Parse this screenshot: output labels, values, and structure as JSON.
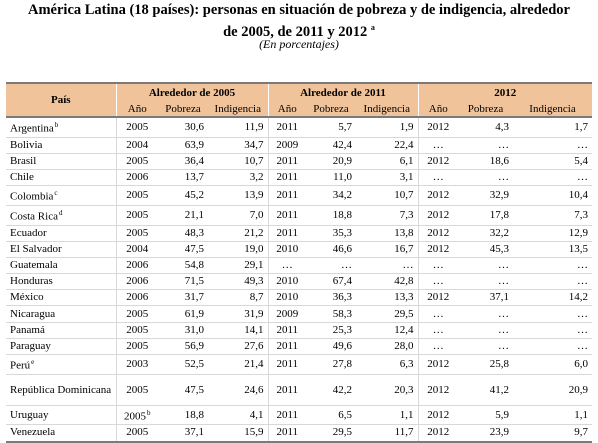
{
  "title_line1": "América Latina (18 países): personas en situación de pobreza y de indigencia, alrededor",
  "title_line2": "de 2005, de 2011 y 2012",
  "title_note": "a",
  "subtitle": "(En porcentajes)",
  "headers": {
    "country": "País",
    "group1": "Alrededor de 2005",
    "group2": "Alrededor de 2011",
    "group3": "2012",
    "year": "Año",
    "poverty": "Pobreza",
    "indigence": "Indigencia"
  },
  "rows": [
    {
      "country": "Argentina",
      "note": "b",
      "y1": "2005",
      "p1": "30,6",
      "i1": "11,9",
      "y2": "2011",
      "p2": "5,7",
      "i2": "1,9",
      "y3": "2012",
      "p3": "4,3",
      "i3": "1,7"
    },
    {
      "country": "Bolivia",
      "note": "",
      "y1": "2004",
      "p1": "63,9",
      "i1": "34,7",
      "y2": "2009",
      "p2": "42,4",
      "i2": "22,4",
      "y3": "…",
      "p3": "…",
      "i3": "…"
    },
    {
      "country": "Brasil",
      "note": "",
      "y1": "2005",
      "p1": "36,4",
      "i1": "10,7",
      "y2": "2011",
      "p2": "20,9",
      "i2": "6,1",
      "y3": "2012",
      "p3": "18,6",
      "i3": "5,4"
    },
    {
      "country": "Chile",
      "note": "",
      "y1": "2006",
      "p1": "13,7",
      "i1": "3,2",
      "y2": "2011",
      "p2": "11,0",
      "i2": "3,1",
      "y3": "…",
      "p3": "…",
      "i3": "…"
    },
    {
      "country": "Colombia",
      "note": "c",
      "y1": "2005",
      "p1": "45,2",
      "i1": "13,9",
      "y2": "2011",
      "p2": "34,2",
      "i2": "10,7",
      "y3": "2012",
      "p3": "32,9",
      "i3": "10,4"
    },
    {
      "country": "Costa Rica",
      "note": "d",
      "y1": "2005",
      "p1": "21,1",
      "i1": "7,0",
      "y2": "2011",
      "p2": "18,8",
      "i2": "7,3",
      "y3": "2012",
      "p3": "17,8",
      "i3": "7,3"
    },
    {
      "country": "Ecuador",
      "note": "",
      "y1": "2005",
      "p1": "48,3",
      "i1": "21,2",
      "y2": "2011",
      "p2": "35,3",
      "i2": "13,8",
      "y3": "2012",
      "p3": "32,2",
      "i3": "12,9"
    },
    {
      "country": "El Salvador",
      "note": "",
      "y1": "2004",
      "p1": "47,5",
      "i1": "19,0",
      "y2": "2010",
      "p2": "46,6",
      "i2": "16,7",
      "y3": "2012",
      "p3": "45,3",
      "i3": "13,5"
    },
    {
      "country": "Guatemala",
      "note": "",
      "y1": "2006",
      "p1": "54,8",
      "i1": "29,1",
      "y2": "…",
      "p2": "…",
      "i2": "…",
      "y3": "…",
      "p3": "…",
      "i3": "…"
    },
    {
      "country": "Honduras",
      "note": "",
      "y1": "2006",
      "p1": "71,5",
      "i1": "49,3",
      "y2": "2010",
      "p2": "67,4",
      "i2": "42,8",
      "y3": "…",
      "p3": "…",
      "i3": "…"
    },
    {
      "country": "México",
      "note": "",
      "y1": "2006",
      "p1": "31,7",
      "i1": "8,7",
      "y2": "2010",
      "p2": "36,3",
      "i2": "13,3",
      "y3": "2012",
      "p3": "37,1",
      "i3": "14,2"
    },
    {
      "country": "Nicaragua",
      "note": "",
      "y1": "2005",
      "p1": "61,9",
      "i1": "31,9",
      "y2": "2009",
      "p2": "58,3",
      "i2": "29,5",
      "y3": "…",
      "p3": "…",
      "i3": "…"
    },
    {
      "country": "Panamá",
      "note": "",
      "y1": "2005",
      "p1": "31,0",
      "i1": "14,1",
      "y2": "2011",
      "p2": "25,3",
      "i2": "12,4",
      "y3": "…",
      "p3": "…",
      "i3": "…"
    },
    {
      "country": "Paraguay",
      "note": "",
      "y1": "2005",
      "p1": "56,9",
      "i1": "27,6",
      "y2": "2011",
      "p2": "49,6",
      "i2": "28,0",
      "y3": "…",
      "p3": "…",
      "i3": "…"
    },
    {
      "country": "Perú",
      "note": "e",
      "y1": "2003",
      "p1": "52,5",
      "i1": "21,4",
      "y2": "2011",
      "p2": "27,8",
      "i2": "6,3",
      "y3": "2012",
      "p3": "25,8",
      "i3": "6,0"
    },
    {
      "country": "República Dominicana",
      "note": "",
      "y1": "2005",
      "p1": "47,5",
      "i1": "24,6",
      "y2": "2011",
      "p2": "42,2",
      "i2": "20,3",
      "y3": "2012",
      "p3": "41,2",
      "i3": "20,9"
    },
    {
      "country": "Uruguay",
      "note": "",
      "y1": "2005",
      "y1note": "b",
      "p1": "18,8",
      "i1": "4,1",
      "y2": "2011",
      "p2": "6,5",
      "i2": "1,1",
      "y3": "2012",
      "p3": "5,9",
      "i3": "1,1"
    },
    {
      "country": "Venezuela",
      "note": "",
      "y1": "2005",
      "p1": "37,1",
      "i1": "15,9",
      "y2": "2011",
      "p2": "29,5",
      "i2": "11,7",
      "y3": "2012",
      "p3": "23,9",
      "i3": "9,7"
    }
  ]
}
